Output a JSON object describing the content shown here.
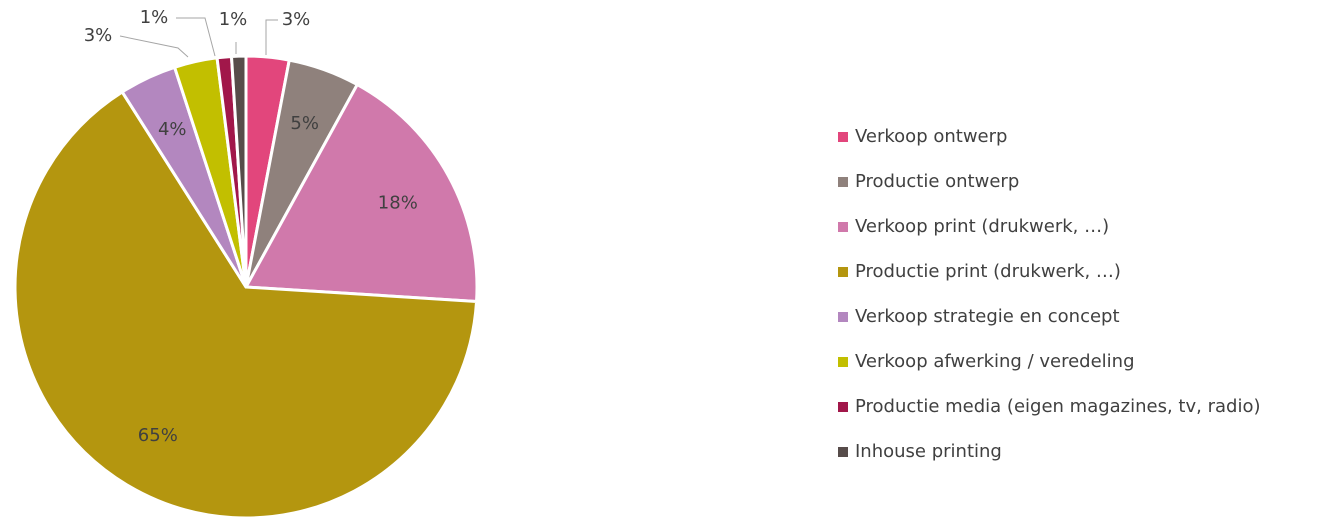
{
  "chart_data": {
    "type": "pie",
    "categories": [
      "Verkoop ontwerp",
      "Productie ontwerp",
      "Verkoop print (drukwerk, …)",
      "Productie print (drukwerk, …)",
      "Verkoop strategie en concept",
      "Verkoop afwerking / veredeling",
      "Productie media (eigen magazines, tv, radio)",
      "Inhouse printing"
    ],
    "values": [
      3,
      5,
      18,
      65,
      4,
      3,
      1,
      1
    ],
    "value_labels": [
      "3%",
      "5%",
      "18%",
      "65%",
      "4%",
      "3%",
      "1%",
      "1%"
    ],
    "colors": [
      "#e2467c",
      "#8f817c",
      "#d079ab",
      "#b4960f",
      "#b387bf",
      "#c2bf00",
      "#a1174a",
      "#574c4a"
    ],
    "legend": "right"
  }
}
